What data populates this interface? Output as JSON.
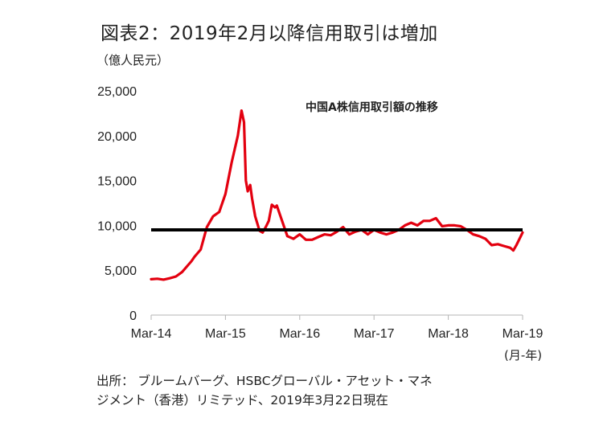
{
  "title": "図表2：2019年2月以降信用取引は増加",
  "unit_label": "（億人民元）",
  "x_unit_label": "(月-年)",
  "source_lines": [
    "出所： ブルームバーグ、HSBCグローバル・アセット・マネ",
    "ジメント（香港）リミテッド、2019年3月22日現在"
  ],
  "colors": {
    "series": "#e3000f",
    "reference_line": "#000000"
  },
  "chart_data": {
    "type": "line",
    "title": "中国A株信用取引額の推移",
    "ylim": [
      0,
      25000
    ],
    "xlim": [
      0,
      60
    ],
    "y_ticks": [
      {
        "value": 0,
        "label": "0"
      },
      {
        "value": 5000,
        "label": "5,000"
      },
      {
        "value": 10000,
        "label": "10,000"
      },
      {
        "value": 15000,
        "label": "15,000"
      },
      {
        "value": 20000,
        "label": "20,000"
      },
      {
        "value": 25000,
        "label": "25,000"
      }
    ],
    "x_ticks": [
      {
        "value": 0,
        "label": "Mar-14"
      },
      {
        "value": 12,
        "label": "Mar-15"
      },
      {
        "value": 24,
        "label": "Mar-16"
      },
      {
        "value": 36,
        "label": "Mar-17"
      },
      {
        "value": 48,
        "label": "Mar-18"
      },
      {
        "value": 60,
        "label": "Mar-19"
      }
    ],
    "reference_line": {
      "y": 9500
    },
    "series": [
      {
        "x": [
          0,
          1,
          2,
          3,
          4,
          5,
          6,
          6.5,
          7,
          8,
          9,
          10,
          11,
          12,
          13,
          14,
          14.6,
          15,
          15.3,
          15.6,
          16,
          16.3,
          16.8,
          17.5,
          18,
          18.5,
          19,
          19.5,
          20,
          20.3,
          21,
          22,
          23,
          24,
          25,
          26,
          27,
          28,
          29,
          30,
          31,
          32,
          33,
          34,
          35,
          36,
          37,
          38,
          39,
          40,
          41,
          42,
          43,
          44,
          45,
          46,
          47,
          48,
          49,
          50,
          51,
          52,
          53,
          54,
          55,
          56,
          57,
          58,
          58.5,
          59,
          59.5,
          60
        ],
        "y": [
          4000,
          4050,
          3950,
          4100,
          4300,
          4800,
          5600,
          6000,
          6500,
          7300,
          9800,
          11000,
          11500,
          13500,
          17000,
          20000,
          22800,
          21500,
          15000,
          13800,
          14500,
          13000,
          11000,
          9400,
          9200,
          9800,
          10500,
          12300,
          12000,
          12200,
          10800,
          8800,
          8500,
          9000,
          8400,
          8400,
          8700,
          9000,
          8900,
          9300,
          9800,
          9000,
          9300,
          9500,
          9000,
          9500,
          9200,
          9000,
          9200,
          9500,
          10000,
          10300,
          10000,
          10500,
          10500,
          10800,
          9900,
          10000,
          10000,
          9900,
          9500,
          9000,
          8800,
          8500,
          7800,
          7900,
          7700,
          7500,
          7200,
          7800,
          8500,
          9200
        ]
      }
    ]
  }
}
